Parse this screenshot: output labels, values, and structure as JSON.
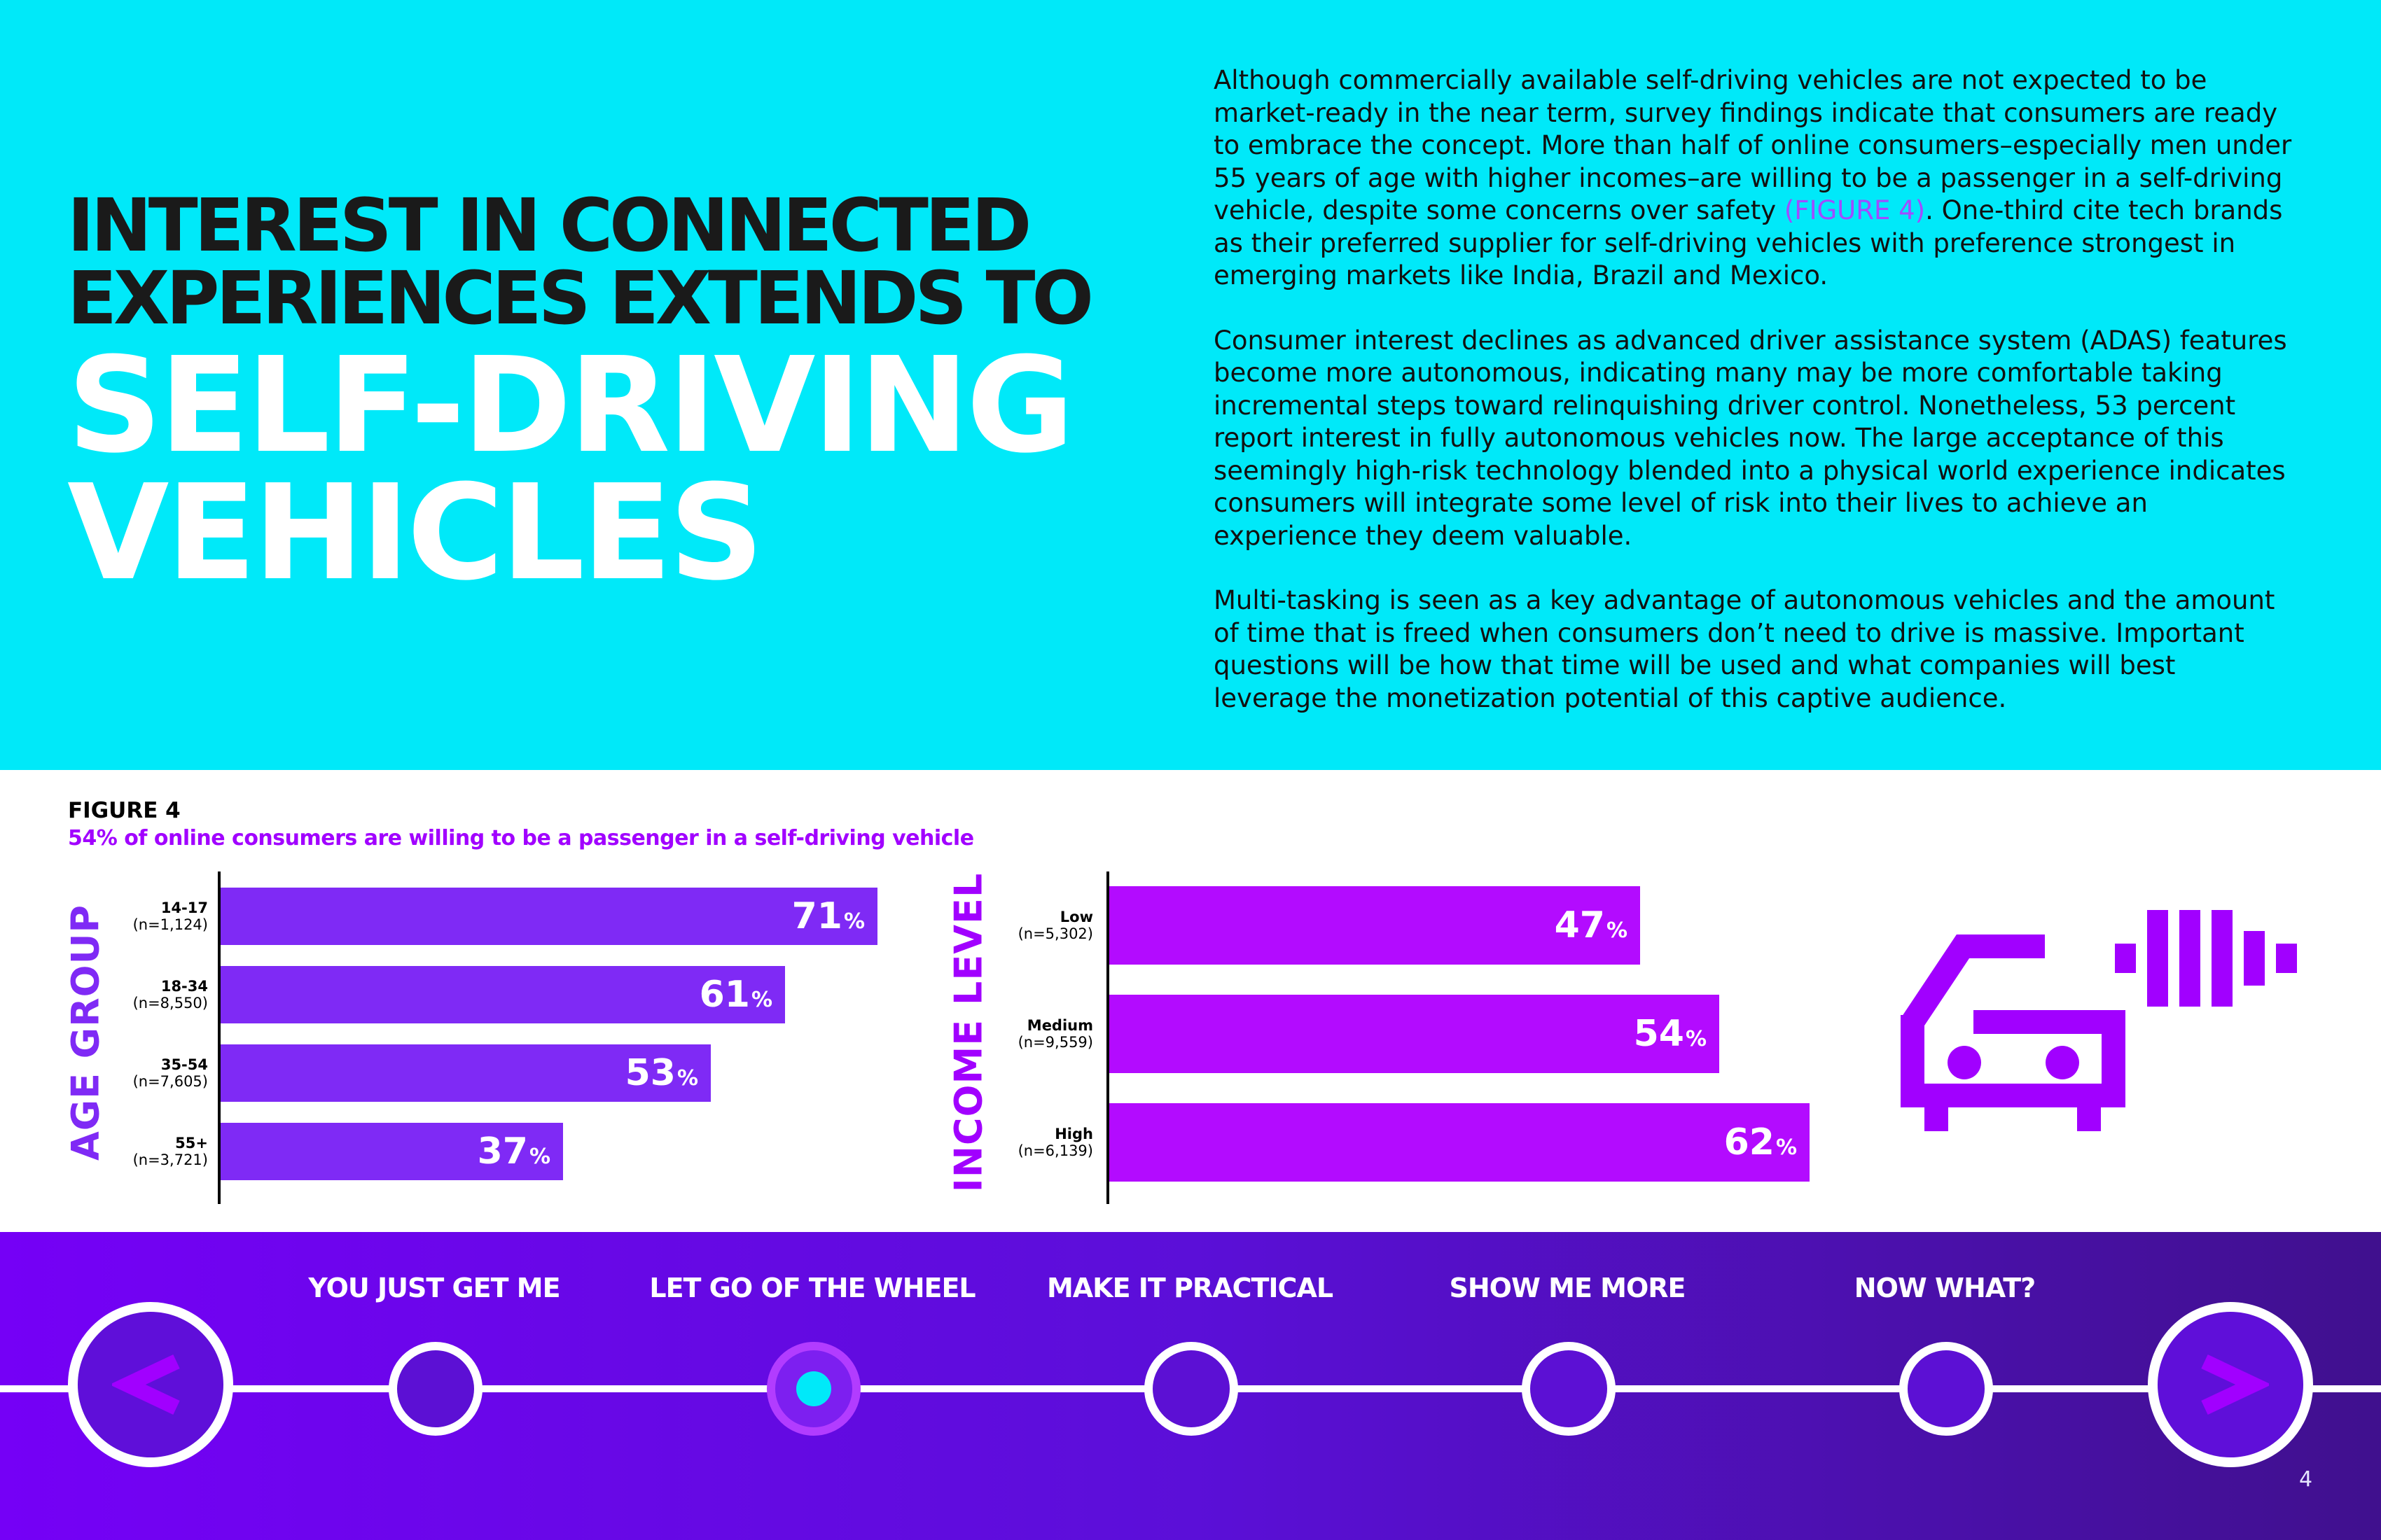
{
  "header": {
    "title_line1": "INTEREST IN CONNECTED",
    "title_line2": "EXPERIENCES EXTENDS TO",
    "title_line3": "SELF-DRIVING",
    "title_line4": "VEHICLES"
  },
  "body": {
    "p1_before": "Although commercially available self-driving vehicles are not expected to be market-ready in the near term, survey findings indicate that consumers are ready to embrace the concept. More than half of online consumers–especially men under 55 years of age with higher incomes–are willing to be a passenger in a self-driving vehicle, despite some concerns over safety ",
    "p1_link": "(FIGURE 4)",
    "p1_after": ". One-third cite tech brands as their preferred supplier for self-driving vehicles with preference strongest in emerging markets like India, Brazil and Mexico.",
    "p2": "Consumer interest declines as advanced driver assistance system (ADAS) features become more autonomous, indicating many may be more comfortable taking incremental steps toward relinquishing driver control. Nonetheless, 53 percent report interest in fully autonomous vehicles now. The large acceptance of this seemingly high-risk technology blended into a physical world experience indicates consumers will integrate some level of risk into their lives to achieve an experience they deem valuable.",
    "p3": "Multi-tasking is seen as a key advantage of autonomous vehicles and the amount of time that is freed when consumers don’t need to drive is massive. Important questions will be how that time will be used and what companies will best leverage the monetization potential of this captive audience."
  },
  "figure": {
    "label": "FIGURE 4",
    "subtitle": "54% of online consumers are willing to be a passenger in a self-driving vehicle"
  },
  "chart_data": [
    {
      "type": "bar",
      "orientation": "horizontal",
      "axis_title": "AGE GROUP",
      "categories": [
        "14-17",
        "18-34",
        "35-54",
        "55+"
      ],
      "sample_sizes": [
        "(n=1,124)",
        "(n=8,550)",
        "(n=7,605)",
        "(n=3,721)"
      ],
      "values": [
        71,
        61,
        53,
        37
      ],
      "unit": "%",
      "xlim": [
        0,
        100
      ],
      "color": "#7f2af5"
    },
    {
      "type": "bar",
      "orientation": "horizontal",
      "axis_title": "INCOME LEVEL",
      "categories": [
        "Low",
        "Medium",
        "High"
      ],
      "sample_sizes": [
        "(n=5,302)",
        "(n=9,559)",
        "(n=6,139)"
      ],
      "values": [
        47,
        54,
        62
      ],
      "unit": "%",
      "xlim": [
        0,
        100
      ],
      "color": "#b30bff"
    }
  ],
  "nav": {
    "items": [
      "YOU JUST GET ME",
      "LET GO OF THE WHEEL",
      "MAKE IT PRACTICAL",
      "SHOW ME MORE",
      "NOW WHAT?"
    ],
    "active_index": 1,
    "prev_icon": "chevron-left-icon",
    "next_icon": "chevron-right-icon"
  },
  "page_number": "4",
  "colors": {
    "cyan": "#00e9f9",
    "purple": "#a100ff",
    "age_bar": "#7f2af5",
    "income_bar": "#b30bff",
    "navy_purple": "#40108e"
  }
}
